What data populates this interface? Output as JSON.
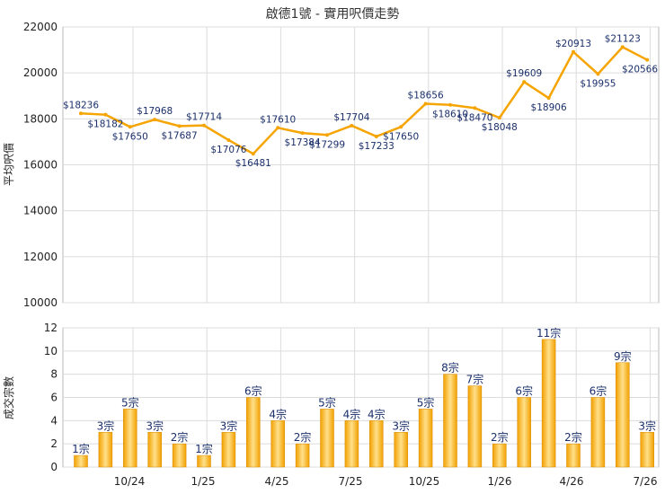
{
  "chart_data": [
    {
      "type": "line",
      "title": "啟德1號 - 實用呎價走勢",
      "ylabel": "平均呎價",
      "ylim": [
        10000,
        22000
      ],
      "yticks": [
        10000,
        12000,
        14000,
        16000,
        18000,
        20000,
        22000
      ],
      "grid": true,
      "color": "#f5a400",
      "point_labels": [
        "$18236",
        "$18182",
        "$17650",
        "$17968",
        "$17687",
        "$17714",
        "$17076",
        "$16481",
        "$17610",
        "$17384",
        "$17299",
        "$17704",
        "$17233",
        "$17650",
        "$18656",
        "$18610",
        "$18470",
        "$18048",
        "$19609",
        "$18906",
        "$20913",
        "$19955",
        "$21123",
        "$20566"
      ],
      "values": [
        18236,
        18182,
        17650,
        17968,
        17687,
        17714,
        17076,
        16481,
        17610,
        17384,
        17299,
        17704,
        17233,
        17650,
        18656,
        18610,
        18470,
        18048,
        19609,
        18906,
        20913,
        19955,
        21123,
        20566
      ]
    },
    {
      "type": "bar",
      "ylabel": "成交宗數",
      "ylim": [
        0,
        12
      ],
      "yticks": [
        0,
        2,
        4,
        6,
        8,
        10,
        12
      ],
      "grid": true,
      "color": "#f5a400",
      "categories_ticks": [
        "10/24",
        "1/25",
        "4/25",
        "7/25",
        "10/25",
        "1/26",
        "4/26",
        "7/26"
      ],
      "bar_labels": [
        "1宗",
        "3宗",
        "5宗",
        "3宗",
        "2宗",
        "1宗",
        "3宗",
        "6宗",
        "4宗",
        "2宗",
        "5宗",
        "4宗",
        "4宗",
        "3宗",
        "5宗",
        "8宗",
        "7宗",
        "2宗",
        "6宗",
        "11宗",
        "2宗",
        "6宗",
        "9宗",
        "3宗"
      ],
      "values": [
        1,
        3,
        5,
        3,
        2,
        1,
        3,
        6,
        4,
        2,
        5,
        4,
        4,
        3,
        5,
        8,
        7,
        2,
        6,
        11,
        2,
        6,
        9,
        3
      ]
    }
  ]
}
